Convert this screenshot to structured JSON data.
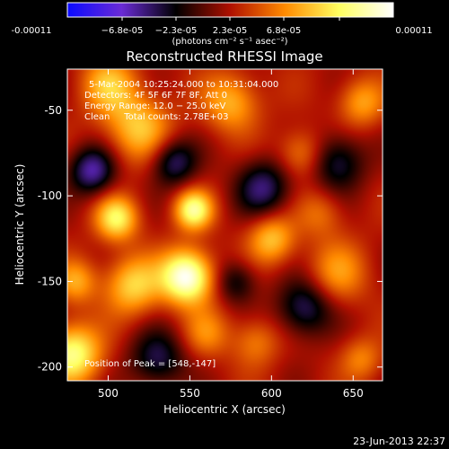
{
  "chart_data": {
    "type": "heatmap",
    "title": "Reconstructed RHESSI Image",
    "xlabel": "Heliocentric X (arcsec)",
    "ylabel": "Heliocentric Y (arcsec)",
    "xlim": [
      475,
      668
    ],
    "ylim": [
      -208,
      -26
    ],
    "x_ticks": [
      500,
      550,
      600,
      650
    ],
    "y_ticks": [
      -50,
      -100,
      -150,
      -200
    ],
    "colorbar": {
      "label": "(photons cm⁻² s⁻¹ asec⁻²)",
      "range": [
        -0.00011,
        0.00011
      ],
      "tick_labels": [
        "-0.00011",
        "−6.8e-05",
        "−2.3e-05",
        "2.3e-05",
        "6.8e-05",
        "0.00011"
      ],
      "colors": [
        "#0a0aff",
        "#6a2bd6",
        "#000000",
        "#b01000",
        "#ff8a00",
        "#ffff60",
        "#ffffff"
      ]
    },
    "annotations": [
      "5-Mar-2004 10:25:24.000 to 10:31:04.000",
      "Detectors: 4F 5F 6F 7F 8F, Att 0",
      "Energy Range: 12.0 − 25.0 keV",
      "Clean     Total counts: 2.78E+03",
      "Position of Peak = [548,-147]"
    ],
    "peak": {
      "x": 548,
      "y": -147
    },
    "sources": [
      {
        "x": 548,
        "y": -147,
        "intensity": 1.0,
        "size": 11
      },
      {
        "x": 552,
        "y": -108,
        "intensity": 0.75,
        "size": 8
      },
      {
        "x": 505,
        "y": -113,
        "intensity": 0.65,
        "size": 9
      },
      {
        "x": 478,
        "y": -192,
        "intensity": 0.75,
        "size": 12
      },
      {
        "x": 518,
        "y": -60,
        "intensity": 0.5,
        "size": 14
      },
      {
        "x": 575,
        "y": -45,
        "intensity": 0.45,
        "size": 12
      },
      {
        "x": 515,
        "y": -152,
        "intensity": 0.55,
        "size": 12
      },
      {
        "x": 600,
        "y": -125,
        "intensity": 0.5,
        "size": 10
      },
      {
        "x": 640,
        "y": -145,
        "intensity": 0.35,
        "size": 13
      },
      {
        "x": 618,
        "y": -75,
        "intensity": 0.35,
        "size": 10
      },
      {
        "x": 590,
        "y": -185,
        "intensity": 0.3,
        "size": 10
      },
      {
        "x": 655,
        "y": -195,
        "intensity": 0.3,
        "size": 9
      },
      {
        "x": 655,
        "y": -45,
        "intensity": 0.4,
        "size": 10
      },
      {
        "x": 500,
        "y": -35,
        "intensity": 0.45,
        "size": 12
      },
      {
        "x": 560,
        "y": -180,
        "intensity": 0.3,
        "size": 10
      },
      {
        "x": 630,
        "y": -110,
        "intensity": 0.25,
        "size": 10
      },
      {
        "x": 480,
        "y": -150,
        "intensity": 0.4,
        "size": 9
      },
      {
        "x": 540,
        "y": -80,
        "intensity": -0.5,
        "size": 10
      },
      {
        "x": 490,
        "y": -85,
        "intensity": -0.6,
        "size": 10
      },
      {
        "x": 595,
        "y": -95,
        "intensity": -0.5,
        "size": 12
      },
      {
        "x": 640,
        "y": -80,
        "intensity": -0.45,
        "size": 12
      },
      {
        "x": 530,
        "y": -195,
        "intensity": -0.45,
        "size": 12
      },
      {
        "x": 620,
        "y": -165,
        "intensity": -0.5,
        "size": 12
      },
      {
        "x": 578,
        "y": -150,
        "intensity": -0.35,
        "size": 9
      }
    ]
  },
  "footer": {
    "timestamp": "23-Jun-2013 22:37"
  }
}
